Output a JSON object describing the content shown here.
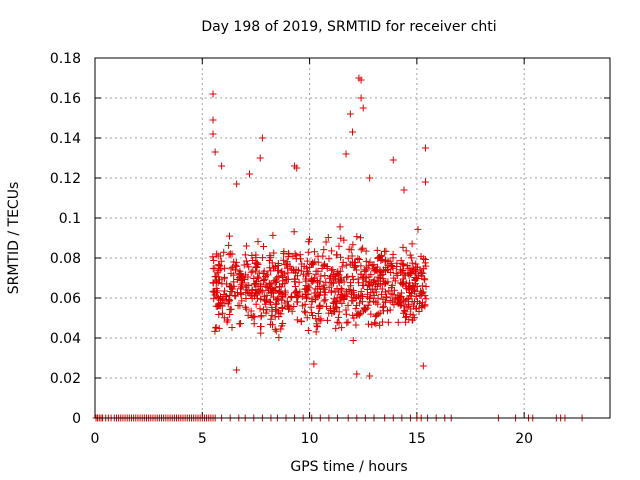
{
  "chart_data": {
    "type": "scatter",
    "title": "Day 198 of 2019, SRMTID for receiver chti",
    "xlabel": "GPS time / hours",
    "ylabel": "SRMTID / TECUs",
    "xlim": [
      0,
      24
    ],
    "ylim": [
      0,
      0.18
    ],
    "xticks": [
      0,
      5,
      10,
      15,
      20
    ],
    "xtick_labels": [
      "0",
      "5",
      "10",
      "15",
      "20"
    ],
    "yticks": [
      0,
      0.02,
      0.04,
      0.06,
      0.08,
      0.1,
      0.12,
      0.14,
      0.16,
      0.18
    ],
    "ytick_labels": [
      "0",
      "0.02",
      "0.04",
      "0.06",
      "0.08",
      "0.1",
      "0.12",
      "0.14",
      "0.16",
      "0.18"
    ],
    "grid": true,
    "marker": "+",
    "series": [
      {
        "name": "SRMTID",
        "color": "#dd0000",
        "zero_x": [
          0.05,
          0.12,
          0.2,
          0.28,
          0.35,
          0.5,
          0.62,
          0.75,
          0.9,
          1.0,
          1.1,
          1.2,
          1.3,
          1.4,
          1.5,
          1.6,
          1.7,
          1.8,
          1.9,
          2.0,
          2.1,
          2.2,
          2.3,
          2.4,
          2.5,
          2.6,
          2.7,
          2.8,
          2.9,
          3.0,
          3.1,
          3.2,
          3.3,
          3.4,
          3.5,
          3.6,
          3.7,
          3.8,
          3.9,
          4.0,
          4.1,
          4.2,
          4.3,
          4.4,
          4.5,
          4.6,
          4.7,
          4.8,
          4.9,
          5.0,
          5.1,
          5.2,
          5.3,
          5.4,
          5.5,
          5.6,
          5.9,
          6.3,
          6.7,
          7.0,
          7.4,
          7.8,
          8.2,
          8.5,
          8.9,
          9.3,
          9.7,
          10.1,
          10.5,
          10.9,
          11.3,
          11.8,
          12.2,
          12.6,
          13.0,
          13.5,
          13.9,
          14.3,
          14.7,
          15.0,
          15.2,
          15.5,
          15.9,
          16.3,
          16.6,
          18.8,
          19.6,
          20.2,
          20.4,
          21.5,
          21.7,
          21.9,
          22.7
        ],
        "peaks": [
          [
            5.5,
            0.162
          ],
          [
            5.5,
            0.149
          ],
          [
            5.5,
            0.142
          ],
          [
            5.6,
            0.133
          ],
          [
            5.9,
            0.126
          ],
          [
            6.6,
            0.117
          ],
          [
            7.2,
            0.122
          ],
          [
            7.7,
            0.13
          ],
          [
            7.8,
            0.14
          ],
          [
            9.3,
            0.126
          ],
          [
            9.4,
            0.125
          ],
          [
            11.7,
            0.132
          ],
          [
            11.9,
            0.152
          ],
          [
            12.0,
            0.143
          ],
          [
            12.3,
            0.17
          ],
          [
            12.4,
            0.169
          ],
          [
            12.4,
            0.16
          ],
          [
            12.5,
            0.155
          ],
          [
            12.8,
            0.12
          ],
          [
            13.9,
            0.129
          ],
          [
            14.4,
            0.114
          ],
          [
            15.4,
            0.135
          ],
          [
            15.4,
            0.118
          ],
          [
            6.6,
            0.024
          ],
          [
            12.2,
            0.022
          ],
          [
            12.8,
            0.021
          ],
          [
            15.3,
            0.026
          ],
          [
            10.2,
            0.027
          ]
        ]
      }
    ]
  }
}
